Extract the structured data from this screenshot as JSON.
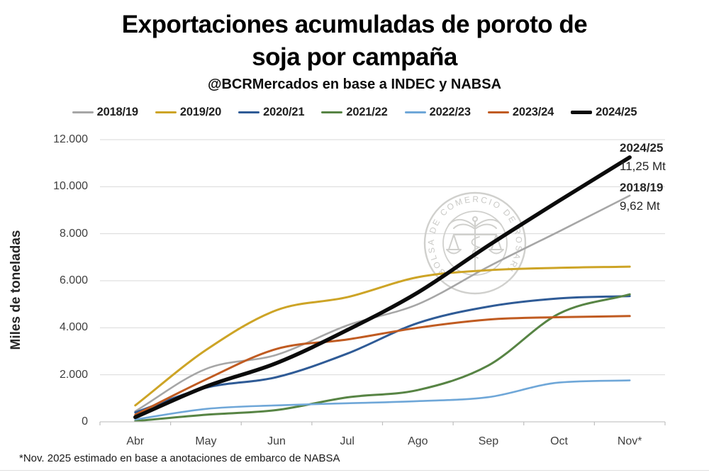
{
  "title": {
    "line1": "Exportaciones acumuladas de poroto de",
    "line2": "soja por campaña",
    "subtitle": "@BCRMercados en base a INDEC y NABSA"
  },
  "watermark": {
    "text": "BOLSA DE COMERCIO DE ROSARIO"
  },
  "footnote": "*Nov. 2025 estimado en base a anotaciones de embarco de NABSA",
  "annotations": [
    {
      "series": "2024/25",
      "value_label": "11,25 Mt"
    },
    {
      "series": "2018/19",
      "value_label": "9,62 Mt"
    }
  ],
  "chart_data": {
    "type": "line",
    "title": "Exportaciones acumuladas de poroto de soja por campaña",
    "subtitle": "@BCRMercados en base a INDEC y NABSA",
    "xlabel": "",
    "ylabel": "Miles de toneladas",
    "unit": "miles de toneladas (Mt = millones de toneladas)",
    "categories": [
      "Abr",
      "May",
      "Jun",
      "Jul",
      "Ago",
      "Sep",
      "Oct",
      "Nov*"
    ],
    "y_tick_values": [
      0,
      2000,
      4000,
      6000,
      8000,
      10000,
      12000
    ],
    "y_tick_labels": [
      "0",
      "2.000",
      "4.000",
      "6.000",
      "8.000",
      "10.000",
      "12.000"
    ],
    "ylim": [
      0,
      12000
    ],
    "grid": "horizontal",
    "legend_position": "top",
    "series": [
      {
        "name": "2018/19",
        "color": "#a6a6a6",
        "width": 2.6,
        "values": [
          450,
          2250,
          2850,
          4100,
          5000,
          6600,
          8100,
          9620
        ]
      },
      {
        "name": "2019/20",
        "color": "#cda426",
        "width": 3,
        "values": [
          700,
          3050,
          4750,
          5300,
          6150,
          6450,
          6550,
          6600
        ]
      },
      {
        "name": "2020/21",
        "color": "#2f5b96",
        "width": 3,
        "values": [
          400,
          1450,
          1900,
          2900,
          4200,
          4900,
          5250,
          5350
        ]
      },
      {
        "name": "2021/22",
        "color": "#578444",
        "width": 3,
        "values": [
          30,
          300,
          500,
          1040,
          1350,
          2400,
          4600,
          5420
        ]
      },
      {
        "name": "2022/23",
        "color": "#6fa7d8",
        "width": 2.6,
        "values": [
          100,
          550,
          700,
          790,
          880,
          1050,
          1670,
          1760
        ]
      },
      {
        "name": "2023/24",
        "color": "#c05b21",
        "width": 3,
        "values": [
          300,
          1800,
          3100,
          3500,
          4000,
          4350,
          4450,
          4500
        ]
      },
      {
        "name": "2024/25",
        "color": "#0b0b0b",
        "width": 5.5,
        "values": [
          200,
          1500,
          2500,
          3900,
          5500,
          7500,
          9400,
          11250
        ]
      }
    ],
    "end_labels": [
      {
        "series": "2024/25",
        "text": "11,25 Mt"
      },
      {
        "series": "2018/19",
        "text": "9,62 Mt"
      }
    ]
  }
}
